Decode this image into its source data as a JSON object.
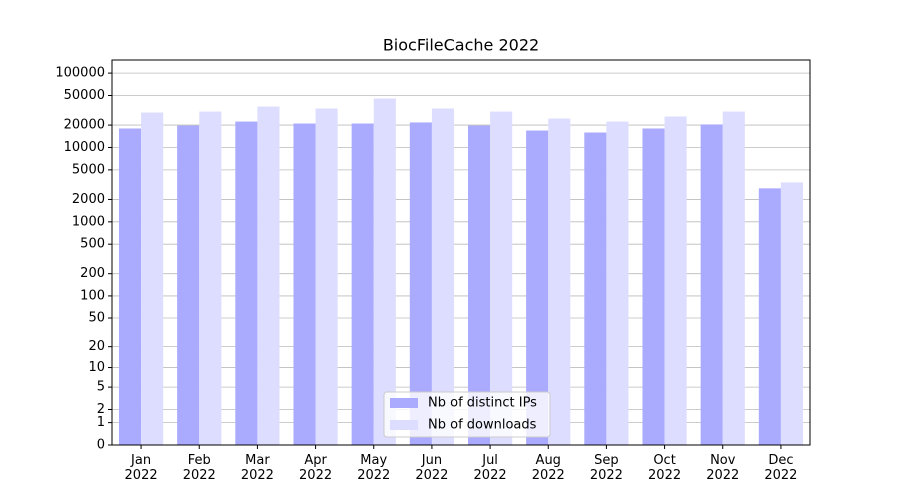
{
  "chart_data": {
    "type": "bar",
    "title": "BiocFileCache 2022",
    "categories": [
      "Jan\n2022",
      "Feb\n2022",
      "Mar\n2022",
      "Apr\n2022",
      "May\n2022",
      "Jun\n2022",
      "Jul\n2022",
      "Aug\n2022",
      "Sep\n2022",
      "Oct\n2022",
      "Nov\n2022",
      "Dec\n2022"
    ],
    "series": [
      {
        "name": "Nb of distinct IPs",
        "color": "#aaaaff",
        "values": [
          18000,
          19700,
          22300,
          21000,
          21000,
          21700,
          19700,
          16900,
          15900,
          18000,
          20400,
          2820
        ]
      },
      {
        "name": "Nb of downloads",
        "color": "#ddddff",
        "values": [
          29500,
          30400,
          35500,
          33400,
          45500,
          33400,
          30400,
          24500,
          22300,
          26100,
          30400,
          3390
        ]
      }
    ],
    "yscale": "log1p",
    "ylim": [
      0,
      150000
    ],
    "yticks": [
      0,
      1,
      2,
      5,
      10,
      20,
      50,
      100,
      200,
      500,
      1000,
      2000,
      5000,
      10000,
      20000,
      50000,
      100000
    ],
    "grid": true,
    "legend": "lower center"
  }
}
